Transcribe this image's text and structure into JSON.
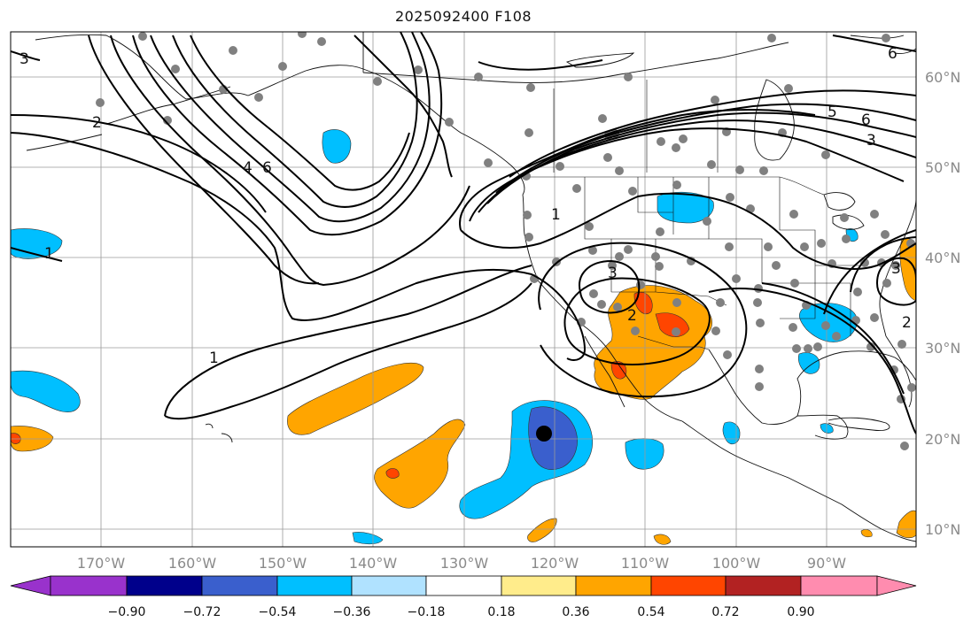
{
  "title": "2025092400 F108",
  "map": {
    "lat_labels": [
      "60°N",
      "50°N",
      "40°N",
      "30°N",
      "20°N",
      "10°N"
    ],
    "lon_labels": [
      "170°W",
      "160°W",
      "150°W",
      "140°W",
      "130°W",
      "120°W",
      "110°W",
      "100°W",
      "90°W"
    ],
    "contour_labels": [
      "1",
      "1",
      "1",
      "2",
      "2",
      "2",
      "3",
      "3",
      "3",
      "3",
      "4",
      "5",
      "6",
      "6",
      "6"
    ],
    "gridlines": true
  },
  "colorbar": {
    "tick_labels": [
      "−0.90",
      "−0.72",
      "−0.54",
      "−0.36",
      "−0.18",
      "0.18",
      "0.36",
      "0.54",
      "0.72",
      "0.90"
    ],
    "colors": [
      "#9932cc",
      "#00008b",
      "#3a5fcd",
      "#00bfff",
      "#b0e2ff",
      "#ffffff",
      "#ffec8b",
      "#ffa500",
      "#ff4500",
      "#b22222",
      "#ff8caf"
    ]
  },
  "markers": {
    "black_dot": "storm-center",
    "station_color": "#808080"
  }
}
